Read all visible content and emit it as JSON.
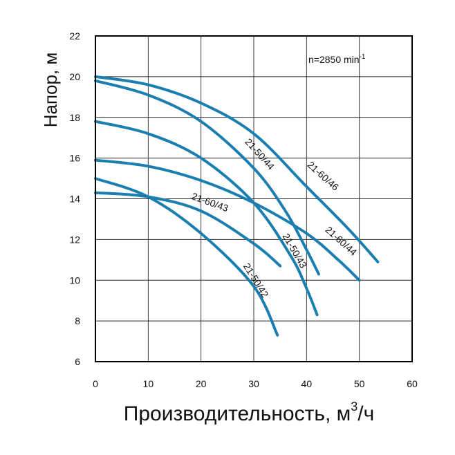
{
  "chart_data": {
    "type": "line",
    "title": "",
    "xlabel": "Производительность, м",
    "xlabel_sup": "3",
    "xlabel_tail": "/ч",
    "ylabel": "Напор, м",
    "annotation_main": "n=2850 min",
    "annotation_sup": "-1",
    "xlim": [
      0,
      60
    ],
    "ylim": [
      6,
      22
    ],
    "x_ticks": [
      "0",
      "10",
      "20",
      "30",
      "40",
      "50",
      "60"
    ],
    "y_ticks": [
      "6",
      "8",
      "10",
      "12",
      "14",
      "16",
      "18",
      "20",
      "22"
    ],
    "grid": true,
    "line_color": "#1a7fb0",
    "series": [
      {
        "name": "21-60/46",
        "points": [
          [
            0,
            20.0
          ],
          [
            10,
            19.6
          ],
          [
            20,
            18.7
          ],
          [
            30,
            17.2
          ],
          [
            40,
            14.6
          ],
          [
            48,
            12.5
          ],
          [
            53.5,
            10.9
          ]
        ]
      },
      {
        "name": "21-50/44",
        "points": [
          [
            0,
            19.8
          ],
          [
            10,
            19.1
          ],
          [
            20,
            17.8
          ],
          [
            30,
            15.5
          ],
          [
            36,
            13.4
          ],
          [
            40,
            11.5
          ],
          [
            42.3,
            10.3
          ]
        ]
      },
      {
        "name": "21-60/44",
        "points": [
          [
            0,
            15.9
          ],
          [
            10,
            15.6
          ],
          [
            20,
            14.9
          ],
          [
            30,
            13.8
          ],
          [
            40,
            12.3
          ],
          [
            46,
            11.0
          ],
          [
            50,
            10.0
          ]
        ]
      },
      {
        "name": "21-50/43",
        "points": [
          [
            0,
            17.8
          ],
          [
            10,
            17.2
          ],
          [
            20,
            16.0
          ],
          [
            30,
            13.8
          ],
          [
            37,
            11.2
          ],
          [
            40,
            9.6
          ],
          [
            42,
            8.3
          ]
        ]
      },
      {
        "name": "21-60/43",
        "points": [
          [
            0,
            14.3
          ],
          [
            10,
            14.1
          ],
          [
            20,
            13.4
          ],
          [
            30,
            11.8
          ],
          [
            35,
            10.7
          ]
        ]
      },
      {
        "name": "21-50/42",
        "points": [
          [
            0,
            15.0
          ],
          [
            10,
            14.1
          ],
          [
            20,
            12.3
          ],
          [
            30,
            9.7
          ],
          [
            34.5,
            7.3
          ]
        ]
      }
    ]
  }
}
